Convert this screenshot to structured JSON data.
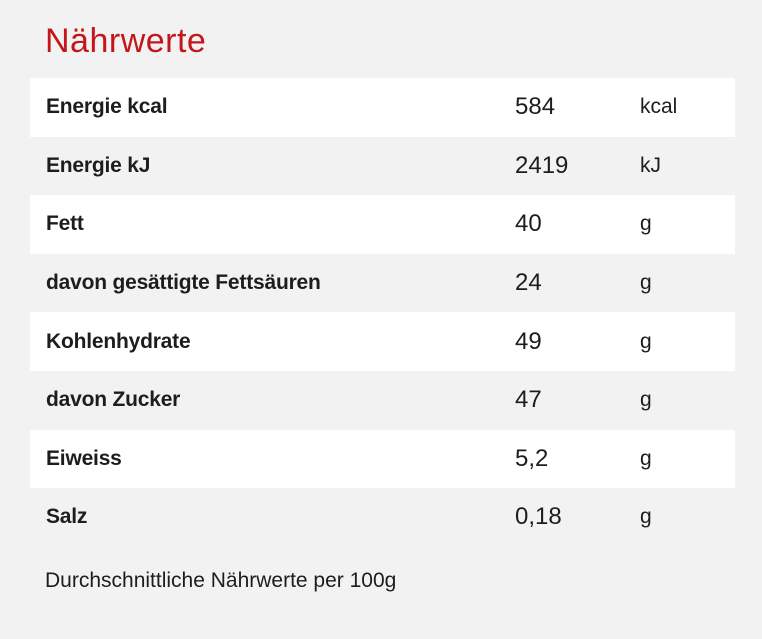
{
  "page": {
    "colors": {
      "background": "#f3f2f2",
      "row_stripe": "#ffffff",
      "text": "#1d1d1b",
      "accent_red": "#c4171c"
    }
  },
  "title": "Nährwerte",
  "table": {
    "rows": [
      {
        "label": "Energie kcal",
        "value": "584",
        "unit": "kcal"
      },
      {
        "label": "Energie kJ",
        "value": "2419",
        "unit": "kJ"
      },
      {
        "label": "Fett",
        "value": "40",
        "unit": "g"
      },
      {
        "label": "davon gesättigte Fettsäuren",
        "value": "24",
        "unit": "g"
      },
      {
        "label": "Kohlenhydrate",
        "value": "49",
        "unit": "g"
      },
      {
        "label": "davon Zucker",
        "value": "47",
        "unit": "g"
      },
      {
        "label": "Eiweiss",
        "value": "5,2",
        "unit": "g"
      },
      {
        "label": "Salz",
        "value": "0,18",
        "unit": "g"
      }
    ]
  },
  "footer": {
    "note": "Durchschnittliche Nährwerte per 100g"
  }
}
